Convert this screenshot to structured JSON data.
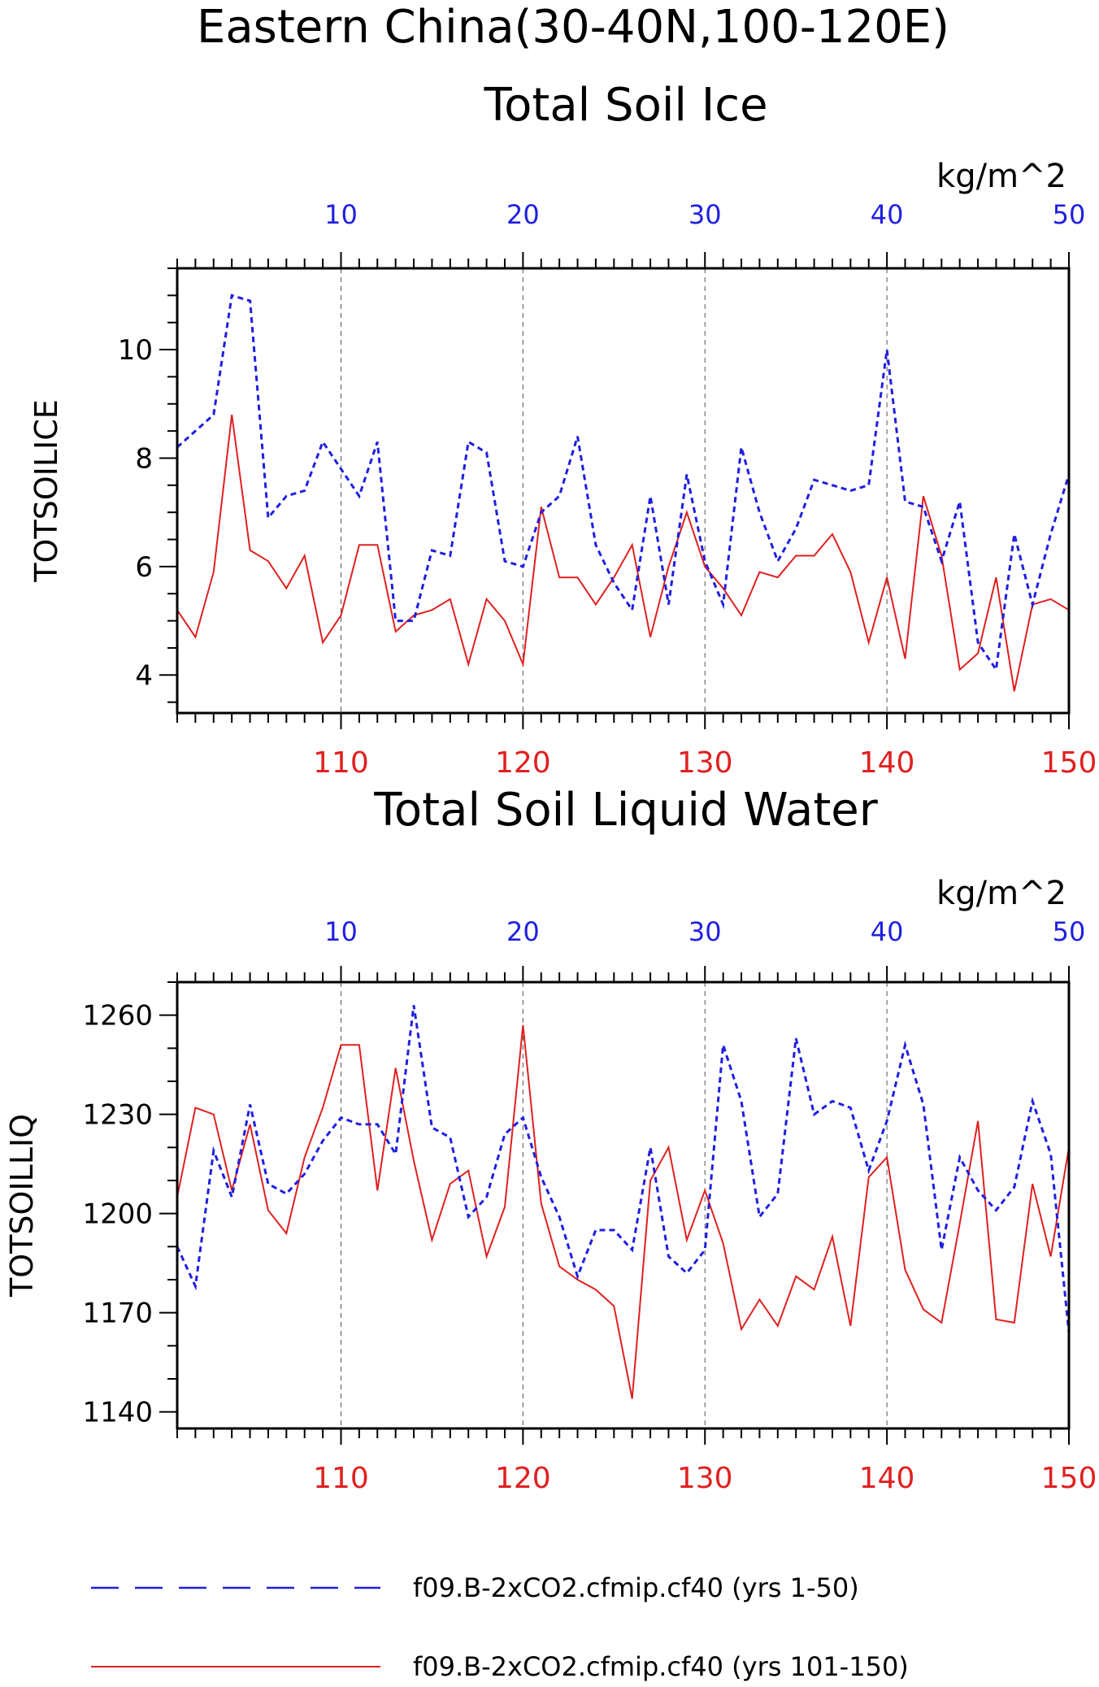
{
  "figure": {
    "title": "Eastern China(30-40N,100-120E)",
    "panel_titles": [
      "Total Soil Ice",
      "Total Soil Liquid Water"
    ],
    "unit_label": "kg/m^2"
  },
  "colors": {
    "series_a": "#1f1fe0",
    "series_b": "#e02020",
    "axis": "#000000",
    "grid": "#555555"
  },
  "legend": {
    "placement": "bottom",
    "items": [
      {
        "label": "f09.B-2xCO2.cfmip.cf40 (yrs 1-50)",
        "style": "dashed",
        "color": "#1f1fe0"
      },
      {
        "label": "f09.B-2xCO2.cfmip.cf40 (yrs 101-150)",
        "style": "solid",
        "color": "#e02020"
      }
    ]
  },
  "chart_data": [
    {
      "type": "line",
      "title": "Total Soil Ice",
      "ylabel": "TOTSOILICE",
      "unit": "kg/m^2",
      "grid": "vertical dashed at 10-year intervals",
      "ylim": [
        3.3,
        11.5
      ],
      "yticks": [
        4,
        6,
        8,
        10
      ],
      "x_top": {
        "range": [
          1,
          50
        ],
        "ticks": [
          10,
          20,
          30,
          40,
          50
        ]
      },
      "x_bottom": {
        "range": [
          101,
          150
        ],
        "ticks": [
          110,
          120,
          130,
          140,
          150
        ]
      },
      "series": [
        {
          "name": "f09.B-2xCO2.cfmip.cf40 (yrs 1-50)",
          "x": [
            1,
            2,
            3,
            4,
            5,
            6,
            7,
            8,
            9,
            10,
            11,
            12,
            13,
            14,
            15,
            16,
            17,
            18,
            19,
            20,
            21,
            22,
            23,
            24,
            25,
            26,
            27,
            28,
            29,
            30,
            31,
            32,
            33,
            34,
            35,
            36,
            37,
            38,
            39,
            40,
            41,
            42,
            43,
            44,
            45,
            46,
            47,
            48,
            49,
            50
          ],
          "values": [
            8.2,
            8.5,
            8.8,
            11.0,
            10.9,
            6.9,
            7.3,
            7.4,
            8.3,
            7.8,
            7.3,
            8.3,
            5.0,
            5.0,
            6.3,
            6.2,
            8.3,
            8.1,
            6.1,
            6.0,
            7.0,
            7.3,
            8.4,
            6.4,
            5.7,
            5.2,
            7.3,
            5.3,
            7.7,
            6.1,
            5.3,
            8.2,
            7.0,
            6.1,
            6.7,
            7.6,
            7.5,
            7.4,
            7.5,
            10.0,
            7.2,
            7.1,
            6.1,
            7.2,
            4.6,
            4.1,
            6.6,
            5.3,
            6.6,
            7.7
          ]
        },
        {
          "name": "f09.B-2xCO2.cfmip.cf40 (yrs 101-150)",
          "x": [
            101,
            102,
            103,
            104,
            105,
            106,
            107,
            108,
            109,
            110,
            111,
            112,
            113,
            114,
            115,
            116,
            117,
            118,
            119,
            120,
            121,
            122,
            123,
            124,
            125,
            126,
            127,
            128,
            129,
            130,
            131,
            132,
            133,
            134,
            135,
            136,
            137,
            138,
            139,
            140,
            141,
            142,
            143,
            144,
            145,
            146,
            147,
            148,
            149,
            150
          ],
          "values": [
            5.2,
            4.7,
            5.9,
            8.8,
            6.3,
            6.1,
            5.6,
            6.2,
            4.6,
            5.1,
            6.4,
            6.4,
            4.8,
            5.1,
            5.2,
            5.4,
            4.2,
            5.4,
            5.0,
            4.2,
            7.1,
            5.8,
            5.8,
            5.3,
            5.8,
            6.4,
            4.7,
            6.0,
            7.0,
            6.0,
            5.6,
            5.1,
            5.9,
            5.8,
            6.2,
            6.2,
            6.6,
            5.9,
            4.6,
            5.8,
            4.3,
            7.3,
            6.2,
            4.1,
            4.4,
            5.8,
            3.7,
            5.3,
            5.4,
            5.2
          ]
        }
      ]
    },
    {
      "type": "line",
      "title": "Total Soil Liquid Water",
      "ylabel": "TOTSOILLIQ",
      "unit": "kg/m^2",
      "grid": "vertical dashed at 10-year intervals",
      "ylim": [
        1135,
        1270
      ],
      "yticks": [
        1140,
        1170,
        1200,
        1230,
        1260
      ],
      "x_top": {
        "range": [
          1,
          50
        ],
        "ticks": [
          10,
          20,
          30,
          40,
          50
        ]
      },
      "x_bottom": {
        "range": [
          101,
          150
        ],
        "ticks": [
          110,
          120,
          130,
          140,
          150
        ]
      },
      "series": [
        {
          "name": "f09.B-2xCO2.cfmip.cf40 (yrs 1-50)",
          "x": [
            1,
            2,
            3,
            4,
            5,
            6,
            7,
            8,
            9,
            10,
            11,
            12,
            13,
            14,
            15,
            16,
            17,
            18,
            19,
            20,
            21,
            22,
            23,
            24,
            25,
            26,
            27,
            28,
            29,
            30,
            31,
            32,
            33,
            34,
            35,
            36,
            37,
            38,
            39,
            40,
            41,
            42,
            43,
            44,
            45,
            46,
            47,
            48,
            49,
            50
          ],
          "values": [
            1190,
            1178,
            1219,
            1205,
            1233,
            1209,
            1206,
            1212,
            1222,
            1229,
            1227,
            1227,
            1218,
            1263,
            1226,
            1223,
            1199,
            1205,
            1224,
            1229,
            1211,
            1199,
            1181,
            1195,
            1195,
            1189,
            1220,
            1187,
            1182,
            1189,
            1251,
            1234,
            1199,
            1206,
            1253,
            1230,
            1234,
            1232,
            1213,
            1228,
            1251,
            1233,
            1189,
            1217,
            1207,
            1201,
            1208,
            1234,
            1218,
            1164
          ]
        },
        {
          "name": "f09.B-2xCO2.cfmip.cf40 (yrs 101-150)",
          "x": [
            101,
            102,
            103,
            104,
            105,
            106,
            107,
            108,
            109,
            110,
            111,
            112,
            113,
            114,
            115,
            116,
            117,
            118,
            119,
            120,
            121,
            122,
            123,
            124,
            125,
            126,
            127,
            128,
            129,
            130,
            131,
            132,
            133,
            134,
            135,
            136,
            137,
            138,
            139,
            140,
            141,
            142,
            143,
            144,
            145,
            146,
            147,
            148,
            149,
            150
          ],
          "values": [
            1205,
            1232,
            1230,
            1207,
            1227,
            1201,
            1194,
            1217,
            1232,
            1251,
            1251,
            1207,
            1244,
            1216,
            1192,
            1209,
            1213,
            1187,
            1202,
            1257,
            1203,
            1184,
            1180,
            1177,
            1172,
            1144,
            1210,
            1220,
            1192,
            1207,
            1191,
            1165,
            1174,
            1166,
            1181,
            1177,
            1193,
            1166,
            1211,
            1217,
            1183,
            1171,
            1167,
            1197,
            1228,
            1168,
            1167,
            1209,
            1187,
            1220
          ]
        }
      ]
    }
  ]
}
